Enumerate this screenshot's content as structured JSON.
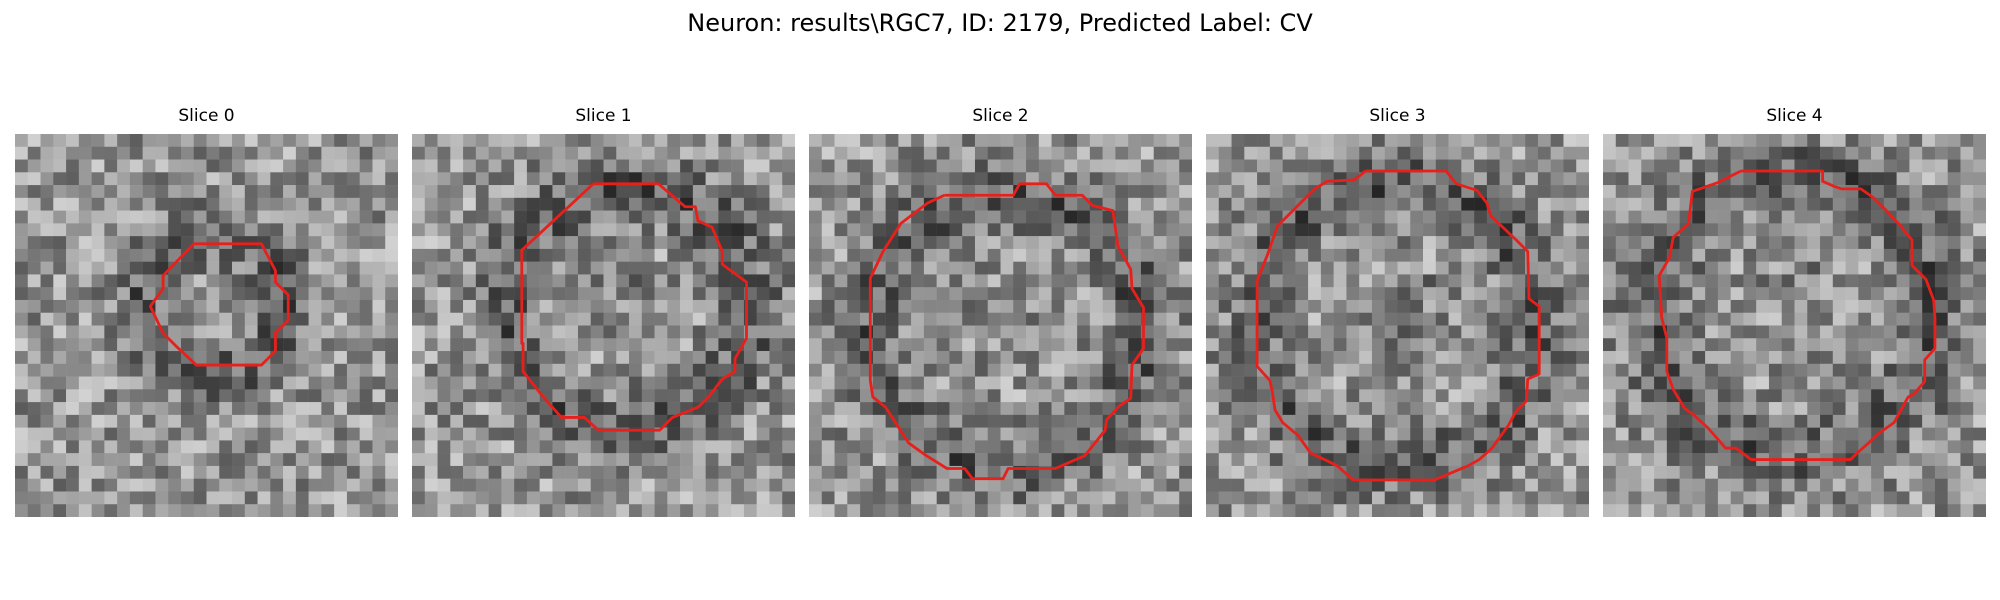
{
  "figure": {
    "title": "Neuron: results\\RGC7, ID: 2179, Predicted Label: CV",
    "contour_color": "#e8201c",
    "colormap": "grayscale",
    "panels": [
      {
        "title": "Slice 0"
      },
      {
        "title": "Slice 1"
      },
      {
        "title": "Slice 2"
      },
      {
        "title": "Slice 3"
      },
      {
        "title": "Slice 4"
      }
    ]
  }
}
